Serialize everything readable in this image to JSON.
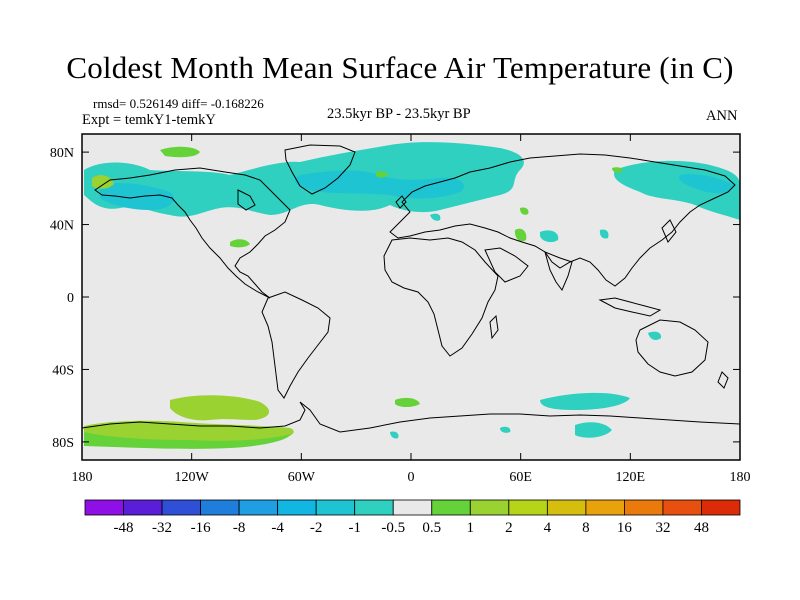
{
  "title": "Coldest Month Mean Surface Air Temperature (in C)",
  "stats": {
    "line": "rmsd= 0.526149 diff= -0.168226"
  },
  "experiment": "Expt = temkY1-temkY",
  "period": "23.5kyr BP - 23.5kyr BP",
  "season": "ANN",
  "axes": {
    "lon_ticks": [
      {
        "value": -180,
        "label": "180"
      },
      {
        "value": -120,
        "label": "120W"
      },
      {
        "value": -60,
        "label": "60W"
      },
      {
        "value": 0,
        "label": "0"
      },
      {
        "value": 60,
        "label": "60E"
      },
      {
        "value": 120,
        "label": "120E"
      },
      {
        "value": 180,
        "label": "180"
      }
    ],
    "lat_ticks": [
      {
        "value": 80,
        "label": "80N"
      },
      {
        "value": 40,
        "label": "40N"
      },
      {
        "value": 0,
        "label": "0"
      },
      {
        "value": -40,
        "label": "40S"
      },
      {
        "value": -80,
        "label": "80S"
      }
    ],
    "lon_range": [
      -180,
      180
    ],
    "lat_range": [
      -90,
      90
    ]
  },
  "colorbar": {
    "colors": [
      "#8f10e6",
      "#5a1ed8",
      "#2e4fd6",
      "#1f7ddc",
      "#1f9ee4",
      "#12b6e2",
      "#1ec4d2",
      "#2fd0c0",
      "#e9e9e9",
      "#64d238",
      "#9ad232",
      "#b6d418",
      "#d6be0f",
      "#e8a20c",
      "#ea7a0c",
      "#e85010",
      "#dc2b08"
    ],
    "labels": [
      "-48",
      "-32",
      "-16",
      "-8",
      "-4",
      "-2",
      "-1",
      "-0.5",
      "0.5",
      "1",
      "2",
      "4",
      "8",
      "16",
      "32",
      "48"
    ]
  },
  "colors": {
    "background_field": "#e9e9e9",
    "coast": "#000000"
  }
}
